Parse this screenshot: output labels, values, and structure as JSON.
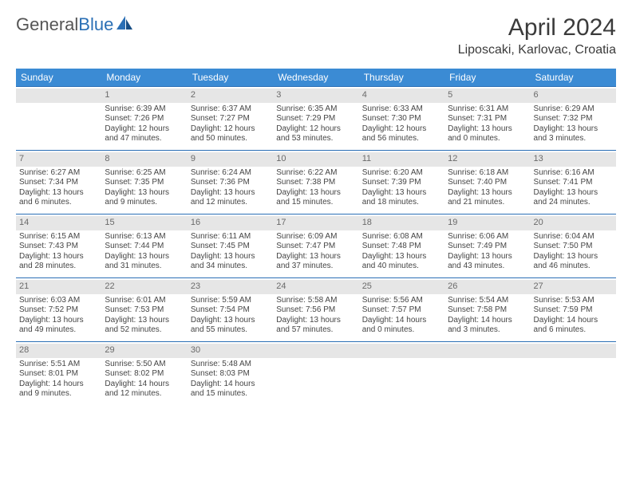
{
  "logo": {
    "text1": "General",
    "text2": "Blue"
  },
  "title": "April 2024",
  "location": "Liposcaki, Karlovac, Croatia",
  "headers": [
    "Sunday",
    "Monday",
    "Tuesday",
    "Wednesday",
    "Thursday",
    "Friday",
    "Saturday"
  ],
  "colors": {
    "header_bg": "#3b8bd4",
    "header_text": "#ffffff",
    "daynum_bg": "#e6e6e6",
    "border": "#2a6fb5",
    "body_text": "#454545"
  },
  "weeks": [
    [
      {
        "day": "",
        "sunrise": "",
        "sunset": "",
        "daylight": ""
      },
      {
        "day": "1",
        "sunrise": "Sunrise: 6:39 AM",
        "sunset": "Sunset: 7:26 PM",
        "daylight": "Daylight: 12 hours and 47 minutes."
      },
      {
        "day": "2",
        "sunrise": "Sunrise: 6:37 AM",
        "sunset": "Sunset: 7:27 PM",
        "daylight": "Daylight: 12 hours and 50 minutes."
      },
      {
        "day": "3",
        "sunrise": "Sunrise: 6:35 AM",
        "sunset": "Sunset: 7:29 PM",
        "daylight": "Daylight: 12 hours and 53 minutes."
      },
      {
        "day": "4",
        "sunrise": "Sunrise: 6:33 AM",
        "sunset": "Sunset: 7:30 PM",
        "daylight": "Daylight: 12 hours and 56 minutes."
      },
      {
        "day": "5",
        "sunrise": "Sunrise: 6:31 AM",
        "sunset": "Sunset: 7:31 PM",
        "daylight": "Daylight: 13 hours and 0 minutes."
      },
      {
        "day": "6",
        "sunrise": "Sunrise: 6:29 AM",
        "sunset": "Sunset: 7:32 PM",
        "daylight": "Daylight: 13 hours and 3 minutes."
      }
    ],
    [
      {
        "day": "7",
        "sunrise": "Sunrise: 6:27 AM",
        "sunset": "Sunset: 7:34 PM",
        "daylight": "Daylight: 13 hours and 6 minutes."
      },
      {
        "day": "8",
        "sunrise": "Sunrise: 6:25 AM",
        "sunset": "Sunset: 7:35 PM",
        "daylight": "Daylight: 13 hours and 9 minutes."
      },
      {
        "day": "9",
        "sunrise": "Sunrise: 6:24 AM",
        "sunset": "Sunset: 7:36 PM",
        "daylight": "Daylight: 13 hours and 12 minutes."
      },
      {
        "day": "10",
        "sunrise": "Sunrise: 6:22 AM",
        "sunset": "Sunset: 7:38 PM",
        "daylight": "Daylight: 13 hours and 15 minutes."
      },
      {
        "day": "11",
        "sunrise": "Sunrise: 6:20 AM",
        "sunset": "Sunset: 7:39 PM",
        "daylight": "Daylight: 13 hours and 18 minutes."
      },
      {
        "day": "12",
        "sunrise": "Sunrise: 6:18 AM",
        "sunset": "Sunset: 7:40 PM",
        "daylight": "Daylight: 13 hours and 21 minutes."
      },
      {
        "day": "13",
        "sunrise": "Sunrise: 6:16 AM",
        "sunset": "Sunset: 7:41 PM",
        "daylight": "Daylight: 13 hours and 24 minutes."
      }
    ],
    [
      {
        "day": "14",
        "sunrise": "Sunrise: 6:15 AM",
        "sunset": "Sunset: 7:43 PM",
        "daylight": "Daylight: 13 hours and 28 minutes."
      },
      {
        "day": "15",
        "sunrise": "Sunrise: 6:13 AM",
        "sunset": "Sunset: 7:44 PM",
        "daylight": "Daylight: 13 hours and 31 minutes."
      },
      {
        "day": "16",
        "sunrise": "Sunrise: 6:11 AM",
        "sunset": "Sunset: 7:45 PM",
        "daylight": "Daylight: 13 hours and 34 minutes."
      },
      {
        "day": "17",
        "sunrise": "Sunrise: 6:09 AM",
        "sunset": "Sunset: 7:47 PM",
        "daylight": "Daylight: 13 hours and 37 minutes."
      },
      {
        "day": "18",
        "sunrise": "Sunrise: 6:08 AM",
        "sunset": "Sunset: 7:48 PM",
        "daylight": "Daylight: 13 hours and 40 minutes."
      },
      {
        "day": "19",
        "sunrise": "Sunrise: 6:06 AM",
        "sunset": "Sunset: 7:49 PM",
        "daylight": "Daylight: 13 hours and 43 minutes."
      },
      {
        "day": "20",
        "sunrise": "Sunrise: 6:04 AM",
        "sunset": "Sunset: 7:50 PM",
        "daylight": "Daylight: 13 hours and 46 minutes."
      }
    ],
    [
      {
        "day": "21",
        "sunrise": "Sunrise: 6:03 AM",
        "sunset": "Sunset: 7:52 PM",
        "daylight": "Daylight: 13 hours and 49 minutes."
      },
      {
        "day": "22",
        "sunrise": "Sunrise: 6:01 AM",
        "sunset": "Sunset: 7:53 PM",
        "daylight": "Daylight: 13 hours and 52 minutes."
      },
      {
        "day": "23",
        "sunrise": "Sunrise: 5:59 AM",
        "sunset": "Sunset: 7:54 PM",
        "daylight": "Daylight: 13 hours and 55 minutes."
      },
      {
        "day": "24",
        "sunrise": "Sunrise: 5:58 AM",
        "sunset": "Sunset: 7:56 PM",
        "daylight": "Daylight: 13 hours and 57 minutes."
      },
      {
        "day": "25",
        "sunrise": "Sunrise: 5:56 AM",
        "sunset": "Sunset: 7:57 PM",
        "daylight": "Daylight: 14 hours and 0 minutes."
      },
      {
        "day": "26",
        "sunrise": "Sunrise: 5:54 AM",
        "sunset": "Sunset: 7:58 PM",
        "daylight": "Daylight: 14 hours and 3 minutes."
      },
      {
        "day": "27",
        "sunrise": "Sunrise: 5:53 AM",
        "sunset": "Sunset: 7:59 PM",
        "daylight": "Daylight: 14 hours and 6 minutes."
      }
    ],
    [
      {
        "day": "28",
        "sunrise": "Sunrise: 5:51 AM",
        "sunset": "Sunset: 8:01 PM",
        "daylight": "Daylight: 14 hours and 9 minutes."
      },
      {
        "day": "29",
        "sunrise": "Sunrise: 5:50 AM",
        "sunset": "Sunset: 8:02 PM",
        "daylight": "Daylight: 14 hours and 12 minutes."
      },
      {
        "day": "30",
        "sunrise": "Sunrise: 5:48 AM",
        "sunset": "Sunset: 8:03 PM",
        "daylight": "Daylight: 14 hours and 15 minutes."
      },
      {
        "day": "",
        "sunrise": "",
        "sunset": "",
        "daylight": ""
      },
      {
        "day": "",
        "sunrise": "",
        "sunset": "",
        "daylight": ""
      },
      {
        "day": "",
        "sunrise": "",
        "sunset": "",
        "daylight": ""
      },
      {
        "day": "",
        "sunrise": "",
        "sunset": "",
        "daylight": ""
      }
    ]
  ]
}
